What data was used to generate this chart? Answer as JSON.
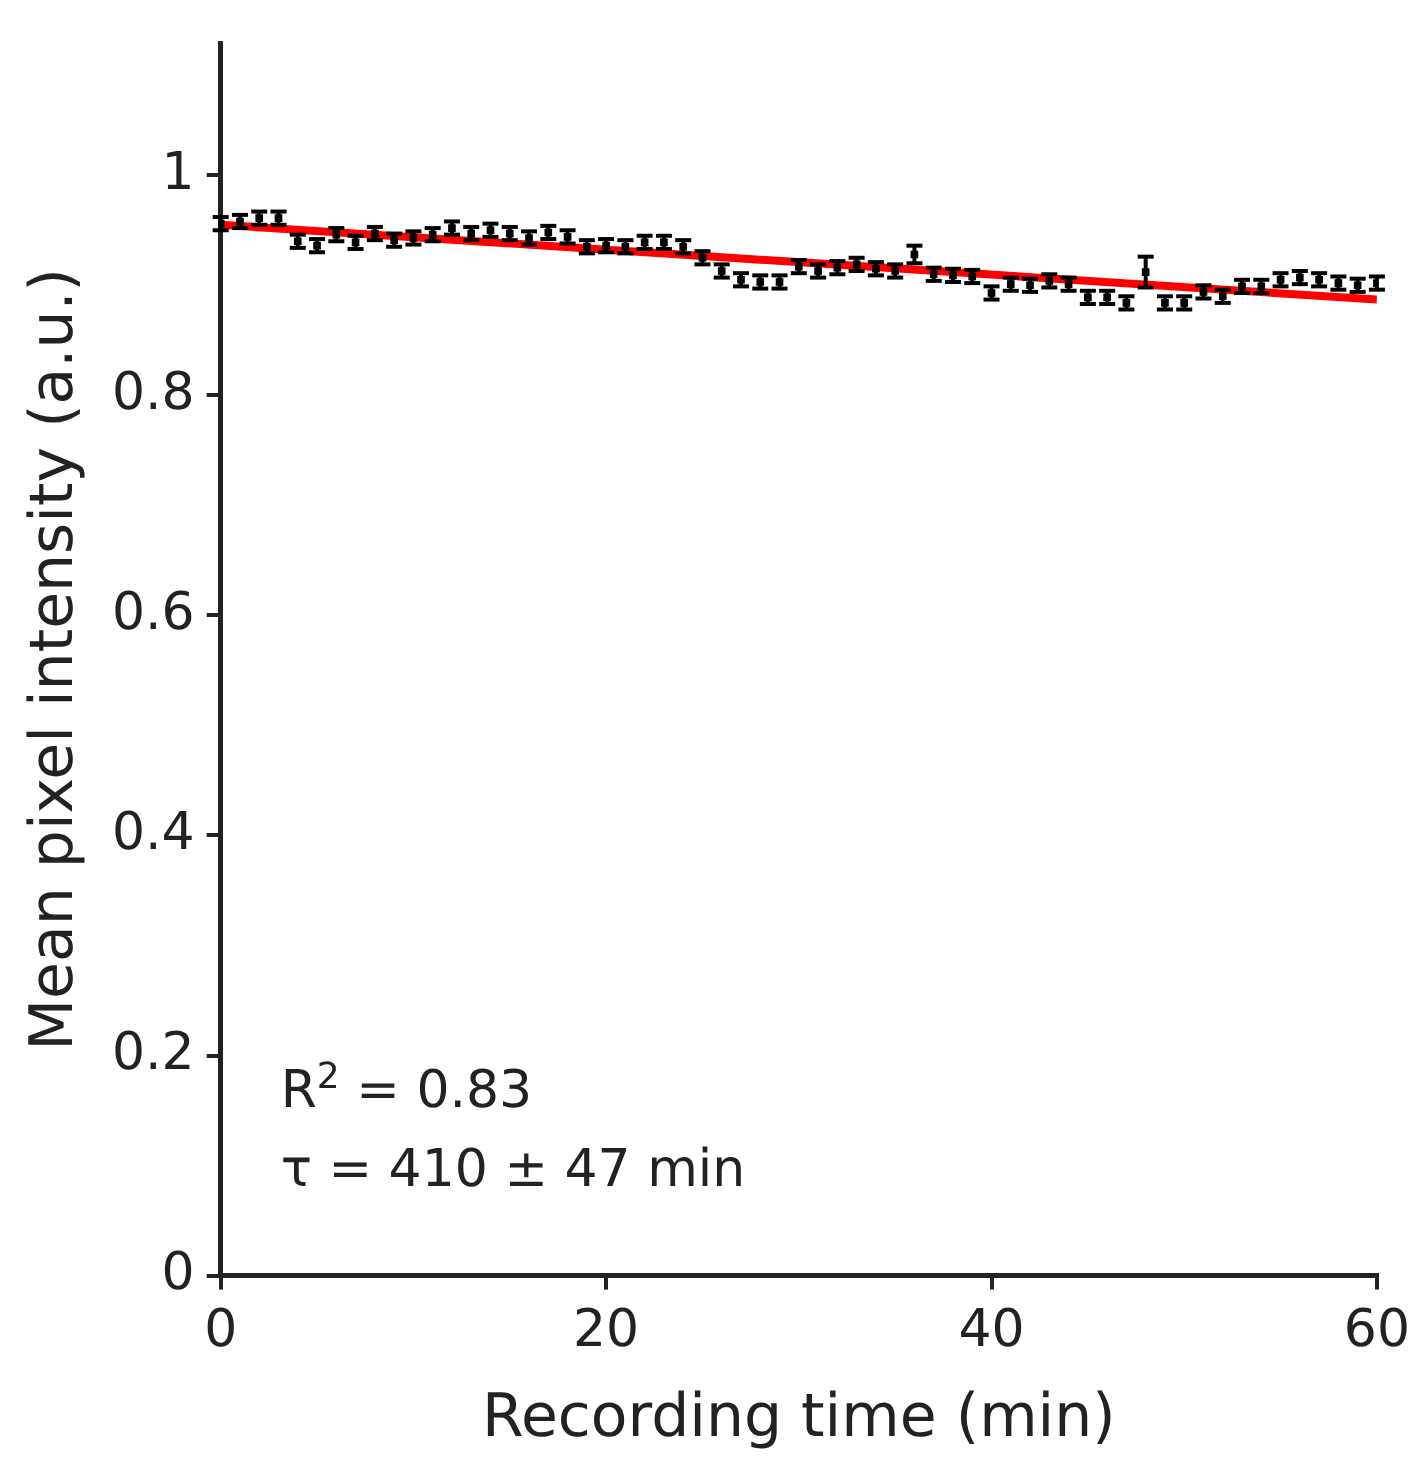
{
  "chart_data": {
    "type": "scatter",
    "xlabel": "Recording time (min)",
    "ylabel": "Mean pixel intensity (a.u.)",
    "xlim": [
      0,
      60
    ],
    "xticks": [
      0,
      20,
      40,
      60
    ],
    "ylim": [
      0,
      1.12
    ],
    "yticks": [
      0,
      0.2,
      0.4,
      0.6,
      0.8,
      1
    ],
    "grid": false,
    "legend": false,
    "annotations": [
      "R$^{2}$ = 0.83",
      "τ = 410 ± 47 min"
    ],
    "series": [
      {
        "type": "scatter",
        "color": "#000000",
        "marker": "square",
        "x": [
          0,
          1,
          2,
          3,
          4,
          5,
          6,
          7,
          8,
          9,
          10,
          11,
          12,
          13,
          14,
          15,
          16,
          17,
          18,
          19,
          20,
          21,
          22,
          23,
          24,
          25,
          26,
          27,
          28,
          29,
          30,
          31,
          32,
          33,
          34,
          35,
          36,
          37,
          38,
          39,
          40,
          41,
          42,
          43,
          44,
          45,
          46,
          47,
          48,
          49,
          50,
          51,
          52,
          53,
          54,
          55,
          56,
          57,
          58,
          59,
          60
        ],
        "values": [
          0.956,
          0.958,
          0.961,
          0.961,
          0.94,
          0.936,
          0.946,
          0.939,
          0.947,
          0.941,
          0.943,
          0.946,
          0.952,
          0.947,
          0.95,
          0.947,
          0.943,
          0.948,
          0.944,
          0.935,
          0.936,
          0.935,
          0.939,
          0.939,
          0.935,
          0.925,
          0.913,
          0.905,
          0.903,
          0.903,
          0.917,
          0.913,
          0.916,
          0.919,
          0.915,
          0.913,
          0.928,
          0.91,
          0.909,
          0.908,
          0.893,
          0.901,
          0.9,
          0.904,
          0.901,
          0.889,
          0.889,
          0.884,
          0.912,
          0.884,
          0.884,
          0.894,
          0.89,
          0.899,
          0.899,
          0.905,
          0.907,
          0.905,
          0.902,
          0.9,
          0.902
        ],
        "errors": [
          0.006,
          0.006,
          0.006,
          0.006,
          0.006,
          0.006,
          0.006,
          0.006,
          0.006,
          0.006,
          0.006,
          0.006,
          0.006,
          0.006,
          0.006,
          0.006,
          0.006,
          0.006,
          0.006,
          0.006,
          0.006,
          0.006,
          0.006,
          0.006,
          0.006,
          0.006,
          0.006,
          0.006,
          0.006,
          0.006,
          0.006,
          0.006,
          0.006,
          0.006,
          0.006,
          0.006,
          0.008,
          0.006,
          0.006,
          0.006,
          0.006,
          0.006,
          0.006,
          0.006,
          0.006,
          0.006,
          0.006,
          0.006,
          0.014,
          0.006,
          0.006,
          0.006,
          0.006,
          0.006,
          0.006,
          0.006,
          0.006,
          0.006,
          0.006,
          0.006,
          0.006
        ]
      },
      {
        "type": "line",
        "color": "#ff0000",
        "line_style": "solid",
        "x": [
          0,
          60
        ],
        "values": [
          0.955,
          0.887
        ]
      }
    ]
  }
}
